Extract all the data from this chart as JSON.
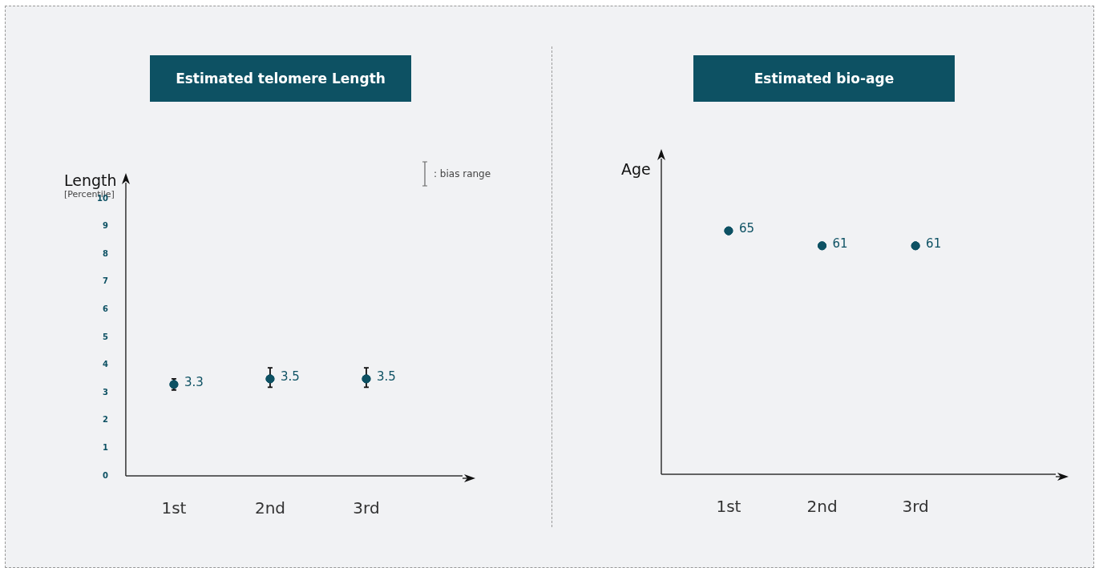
{
  "chart_data": [
    {
      "type": "scatter",
      "title": "Estimated telomere Length",
      "ylabel": "Length\n[Percentile]",
      "categories": [
        "1st",
        "2nd",
        "3rd"
      ],
      "series": [
        {
          "color": "#0d5163",
          "values": [
            3.3,
            3.5,
            3.5
          ],
          "errors": [
            [
              3.1,
              3.5
            ],
            [
              3.2,
              3.9
            ],
            [
              3.2,
              3.9
            ]
          ]
        }
      ],
      "ylim": [
        0,
        10
      ],
      "yticks": [
        0,
        1,
        2,
        3,
        4,
        5,
        6,
        7,
        8,
        9,
        10
      ],
      "data_labels": true,
      "grid": false,
      "marker": "circle",
      "annotations": [
        ": bias range"
      ]
    },
    {
      "type": "scatter",
      "title": "Estimated bio-age",
      "ylabel": "Age",
      "categories": [
        "1st",
        "2nd",
        "3rd"
      ],
      "series": [
        {
          "color": "#0d5163",
          "values": [
            65,
            61,
            61
          ]
        }
      ],
      "tick_labels": "x",
      "data_labels": true,
      "grid": false,
      "marker": "circle"
    }
  ]
}
